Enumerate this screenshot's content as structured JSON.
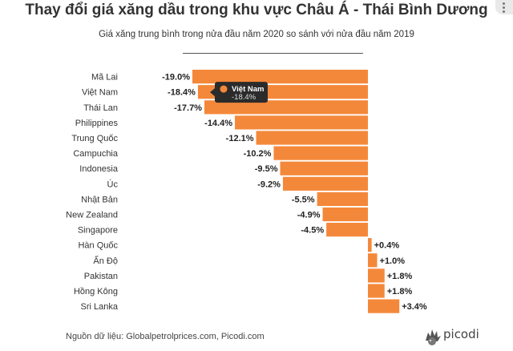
{
  "header": {
    "title": "Thay đổi giá xăng dầu trong khu vực Châu Á - Thái Bình Dương",
    "subtitle": "Giá xăng trung bình trong nửa đầu năm 2020 so sánh với nửa đầu năm 2019"
  },
  "footer": {
    "source": "Nguồn dữ liệu: Globalpetrolprices.com, Picodi.com",
    "logo_text": "picodi"
  },
  "tooltip": {
    "label": "Việt Nam",
    "value": "-18.4%"
  },
  "colors": {
    "bar": "#f4883a",
    "tooltip_bg": "#2b2b2b"
  },
  "chart_data": {
    "type": "bar",
    "orientation": "horizontal",
    "categories": [
      "Mã Lai",
      "Việt Nam",
      "Thái Lan",
      "Philippines",
      "Trung Quốc",
      "Campuchia",
      "Indonesia",
      "Úc",
      "Nhật Bản",
      "New Zealand",
      "Singapore",
      "Hàn Quốc",
      "Ấn Độ",
      "Pakistan",
      "Hồng Kông",
      "Sri Lanka"
    ],
    "values": [
      -19.0,
      -18.4,
      -17.7,
      -14.4,
      -12.1,
      -10.2,
      -9.5,
      -9.2,
      -5.5,
      -4.9,
      -4.5,
      0.4,
      1.0,
      1.8,
      1.8,
      3.4
    ],
    "data_labels": [
      "-19.0%",
      "-18.4%",
      "-17.7%",
      "-14.4%",
      "-12.1%",
      "-10.2%",
      "-9.5%",
      "-9.2%",
      "-5.5%",
      "-4.9%",
      "-4.5%",
      "+0.4%",
      "+1.0%",
      "+1.8%",
      "+1.8%",
      "+3.4%"
    ],
    "title": "Thay đổi giá xăng dầu trong khu vực Châu Á - Thái Bình Dương",
    "subtitle": "Giá xăng trung bình trong nửa đầu năm 2020 so sánh với nửa đầu năm 2019",
    "xlim": [
      -19.0,
      3.4
    ],
    "grid": false,
    "legend": "none"
  }
}
